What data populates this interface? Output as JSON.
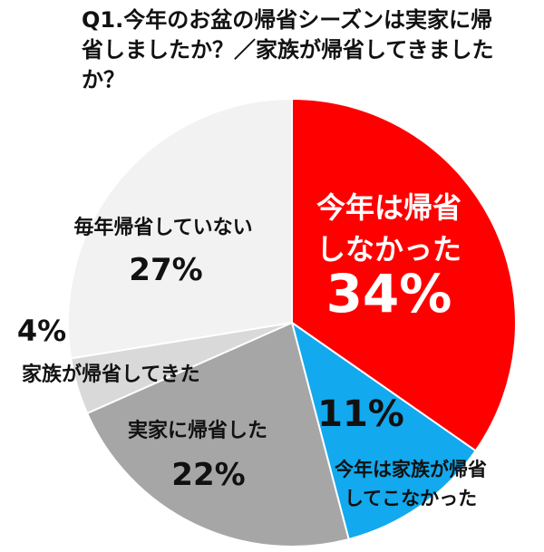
{
  "chart_data": {
    "type": "pie",
    "title": "Q1.今年のお盆の帰省シーズンは実家に帰省しましたか？／家族が帰省してきましたか？",
    "slices": [
      {
        "label_lines": [
          "今年は帰省",
          "しなかった"
        ],
        "value": 34,
        "pct_text": "34%",
        "color": "#ff0000",
        "text_color": "#ffffff"
      },
      {
        "label_lines": [
          "今年は家族が帰省",
          "してこなかった"
        ],
        "value": 11,
        "pct_text": "11%",
        "color": "#12a9ee",
        "text_color": "#111111"
      },
      {
        "label_lines": [
          "実家に帰省した"
        ],
        "value": 22,
        "pct_text": "22%",
        "color": "#a6a6a6",
        "text_color": "#111111"
      },
      {
        "label_lines": [
          "家族が帰省してきた"
        ],
        "value": 4,
        "pct_text": "4%",
        "color": "#d9d9d9",
        "text_color": "#111111"
      },
      {
        "label_lines": [
          "毎年帰省していない"
        ],
        "value": 27,
        "pct_text": "27%",
        "color": "#f2f2f2",
        "text_color": "#111111"
      }
    ]
  }
}
